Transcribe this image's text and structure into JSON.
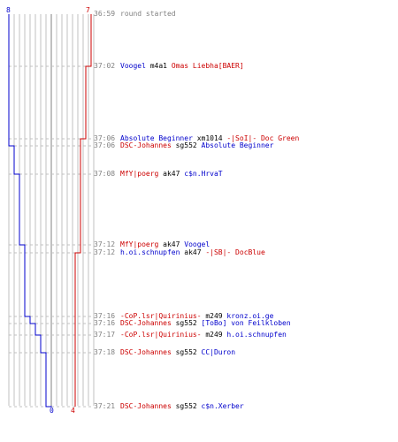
{
  "colors": {
    "team_blue": "#0000cc",
    "team_red": "#cc0000",
    "neutral_text": "#000000",
    "timestamp": "#808080",
    "grid": "#c0c0c0",
    "center_line": "#808080"
  },
  "score_labels": {
    "blue_top": "8",
    "red_top": "7",
    "blue_bottom": "0",
    "red_bottom": "4"
  },
  "events": [
    {
      "time": "36:59",
      "parts": [
        {
          "text": "round started",
          "team": "meta"
        }
      ]
    },
    {
      "time": "37:02",
      "parts": [
        {
          "text": "Voogel",
          "team": "blue"
        },
        {
          "text": " m4a1 ",
          "team": "neutral"
        },
        {
          "text": "Omas Liebha[BAER]",
          "team": "red"
        }
      ]
    },
    {
      "time": "37:06",
      "parts": [
        {
          "text": "Absolute Beginner",
          "team": "blue"
        },
        {
          "text": " xm1014 ",
          "team": "neutral"
        },
        {
          "text": "-|SoI|- Doc Green",
          "team": "red"
        }
      ]
    },
    {
      "time": "37:06",
      "parts": [
        {
          "text": "DSC-Johannes",
          "team": "red"
        },
        {
          "text": " sg552 ",
          "team": "neutral"
        },
        {
          "text": "Absolute Beginner",
          "team": "blue"
        }
      ]
    },
    {
      "time": "37:08",
      "parts": [
        {
          "text": "MfY|poerg",
          "team": "red"
        },
        {
          "text": " ak47 ",
          "team": "neutral"
        },
        {
          "text": "c$n.HrvaT",
          "team": "blue"
        }
      ]
    },
    {
      "time": "37:12",
      "parts": [
        {
          "text": "MfY|poerg",
          "team": "red"
        },
        {
          "text": " ak47 ",
          "team": "neutral"
        },
        {
          "text": "Voogel",
          "team": "blue"
        }
      ]
    },
    {
      "time": "37:12",
      "parts": [
        {
          "text": "h.oi.schnupfen",
          "team": "blue"
        },
        {
          "text": " ak47 ",
          "team": "neutral"
        },
        {
          "text": "-|SB|- DocBlue",
          "team": "red"
        }
      ]
    },
    {
      "time": "37:16",
      "parts": [
        {
          "text": "-CoP.lsr|Quirinius-",
          "team": "red"
        },
        {
          "text": " m249 ",
          "team": "neutral"
        },
        {
          "text": "kronz.oi.ge",
          "team": "blue"
        }
      ]
    },
    {
      "time": "37:16",
      "parts": [
        {
          "text": "DSC-Johannes",
          "team": "red"
        },
        {
          "text": " sg552 ",
          "team": "neutral"
        },
        {
          "text": "[ToBo] von Feilkloben",
          "team": "blue"
        }
      ]
    },
    {
      "time": "37:17",
      "parts": [
        {
          "text": "-CoP.lsr|Quirinius-",
          "team": "red"
        },
        {
          "text": " m249 ",
          "team": "neutral"
        },
        {
          "text": "h.oi.schnupfen",
          "team": "blue"
        }
      ]
    },
    {
      "time": "37:18",
      "parts": [
        {
          "text": "DSC-Johannes",
          "team": "red"
        },
        {
          "text": " sg552 ",
          "team": "neutral"
        },
        {
          "text": "CC|Duron",
          "team": "blue"
        }
      ]
    },
    {
      "time": "37:21",
      "parts": [
        {
          "text": "DSC-Johannes",
          "team": "red"
        },
        {
          "text": " sg552 ",
          "team": "neutral"
        },
        {
          "text": "c$n.Xerber",
          "team": "blue"
        }
      ]
    }
  ],
  "chart_data": {
    "type": "line",
    "x": [
      "36:59",
      "37:02",
      "37:06",
      "37:06",
      "37:08",
      "37:12",
      "37:12",
      "37:16",
      "37:16",
      "37:17",
      "37:18",
      "37:21"
    ],
    "series": [
      {
        "values": [
          8,
          8,
          8,
          7,
          6,
          5,
          5,
          4,
          3,
          2,
          1,
          0
        ]
      },
      {
        "values": [
          7,
          6,
          5,
          5,
          5,
          5,
          4,
          4,
          4,
          4,
          4,
          4
        ]
      }
    ],
    "xlim": [
      0,
      8
    ]
  }
}
